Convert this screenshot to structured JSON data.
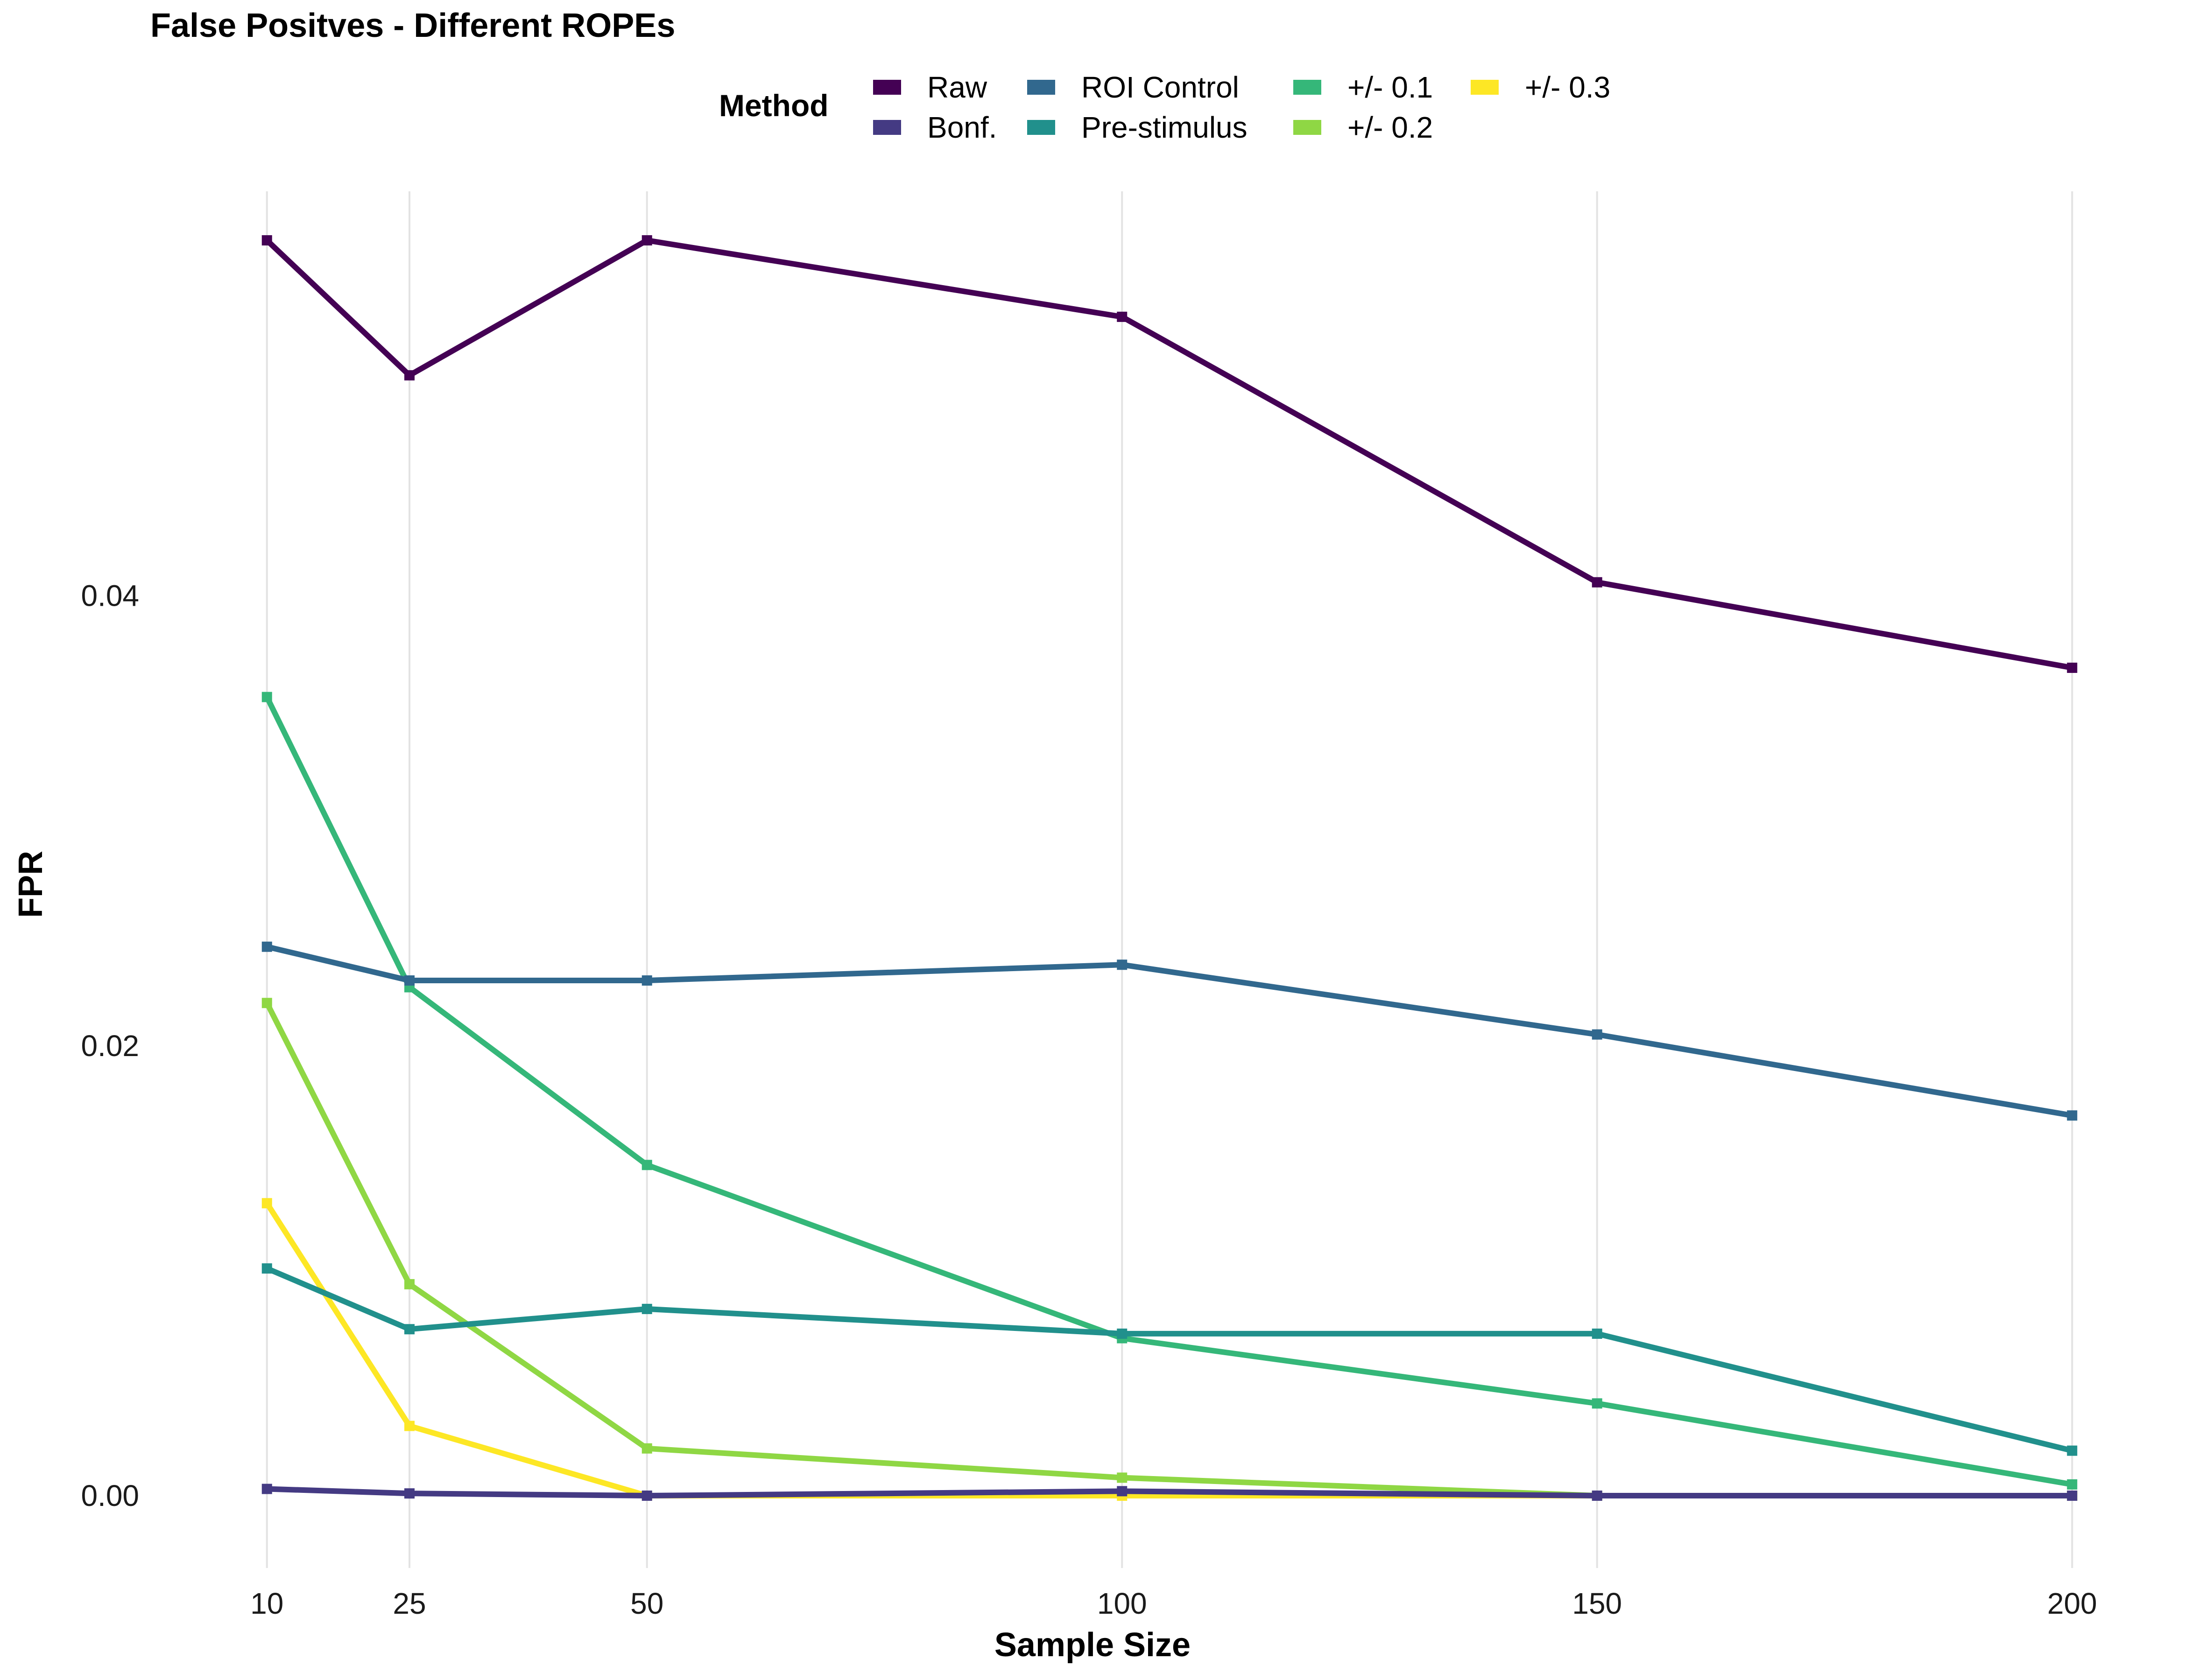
{
  "chart_data": {
    "type": "line",
    "title": "False Positves - Different ROPEs",
    "xlabel": "Sample Size",
    "ylabel": "FPR",
    "x": [
      10,
      25,
      50,
      100,
      150,
      200
    ],
    "x_ticks": [
      "10",
      "25",
      "50",
      "100",
      "150",
      "200"
    ],
    "y_ticks": [
      "0.00",
      "0.02",
      "0.04"
    ],
    "y_tick_values": [
      0,
      0.02,
      0.04
    ],
    "xlim": [
      5,
      205
    ],
    "ylim": [
      -0.0028,
      0.0586
    ],
    "grid": "vertical major gridlines at x ticks",
    "legend": {
      "title": "Method",
      "placement": "top",
      "entries": [
        "Raw",
        "Bonf.",
        "ROI Control",
        "Pre-stimulus",
        "+/- 0.1",
        "+/- 0.2",
        "+/- 0.3"
      ]
    },
    "series": [
      {
        "name": "Raw",
        "color": "#440154",
        "values": [
          0.0558,
          0.0498,
          0.0558,
          0.0524,
          0.0406,
          0.0368
        ]
      },
      {
        "name": "Bonf.",
        "color": "#443A83",
        "values": [
          0.0003,
          0.0001,
          0.0,
          0.0002,
          0.0,
          0.0
        ]
      },
      {
        "name": "ROI Control",
        "color": "#31688E",
        "values": [
          0.0244,
          0.0229,
          0.0229,
          0.0236,
          0.0205,
          0.0169
        ]
      },
      {
        "name": "Pre-stimulus",
        "color": "#21908C",
        "values": [
          0.0101,
          0.0074,
          0.0083,
          0.0072,
          0.0072,
          0.002
        ]
      },
      {
        "name": "+/- 0.1",
        "color": "#35B779",
        "values": [
          0.0355,
          0.0226,
          0.0147,
          0.007,
          0.0041,
          0.0005
        ]
      },
      {
        "name": "+/- 0.2",
        "color": "#8FD744",
        "values": [
          0.0219,
          0.0094,
          0.0021,
          0.0008,
          0.0,
          0.0
        ]
      },
      {
        "name": "+/- 0.3",
        "color": "#FDE725",
        "values": [
          0.013,
          0.0031,
          0.0,
          0.0,
          0.0,
          0.0
        ]
      }
    ]
  }
}
